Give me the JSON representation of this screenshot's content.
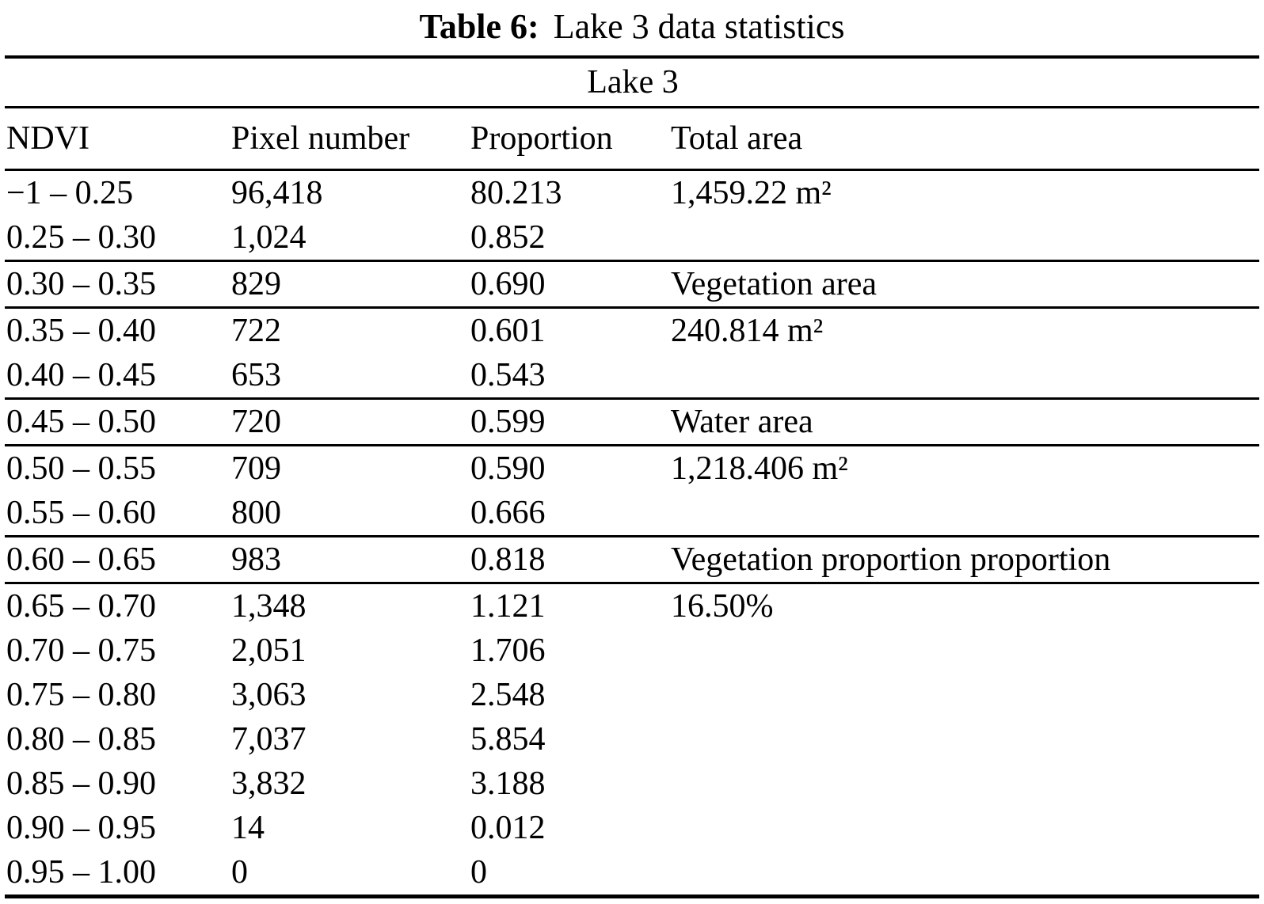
{
  "title": {
    "label": "Table 6:",
    "text": "Lake 3 data statistics"
  },
  "table": {
    "group_header": "Lake 3",
    "columns": [
      "NDVI",
      "Pixel number",
      "Proportion",
      "Total area"
    ],
    "rows": [
      {
        "ndvi": "−1 – 0.25",
        "pixels": "96,418",
        "proportion": "80.213",
        "area": "1,459.22 m²"
      },
      {
        "ndvi": "0.25 – 0.30",
        "pixels": "1,024",
        "proportion": "0.852",
        "area": ""
      },
      {
        "ndvi": "0.30 – 0.35",
        "pixels": "829",
        "proportion": "0.690",
        "area": "Vegetation area"
      },
      {
        "ndvi": "0.35 – 0.40",
        "pixels": "722",
        "proportion": "0.601",
        "area": "240.814 m²"
      },
      {
        "ndvi": "0.40 – 0.45",
        "pixels": "653",
        "proportion": "0.543",
        "area": ""
      },
      {
        "ndvi": "0.45 – 0.50",
        "pixels": "720",
        "proportion": "0.599",
        "area": "Water area"
      },
      {
        "ndvi": "0.50 – 0.55",
        "pixels": "709",
        "proportion": "0.590",
        "area": "1,218.406 m²"
      },
      {
        "ndvi": "0.55 – 0.60",
        "pixels": "800",
        "proportion": "0.666",
        "area": ""
      },
      {
        "ndvi": "0.60 – 0.65",
        "pixels": "983",
        "proportion": "0.818",
        "area": "Vegetation proportion proportion"
      },
      {
        "ndvi": "0.65 – 0.70",
        "pixels": "1,348",
        "proportion": "1.121",
        "area": "16.50%"
      },
      {
        "ndvi": "0.70 – 0.75",
        "pixels": "2,051",
        "proportion": "1.706",
        "area": ""
      },
      {
        "ndvi": "0.75 – 0.80",
        "pixels": "3,063",
        "proportion": "2.548",
        "area": ""
      },
      {
        "ndvi": "0.80 – 0.85",
        "pixels": "7,037",
        "proportion": "5.854",
        "area": ""
      },
      {
        "ndvi": "0.85 – 0.90",
        "pixels": "3,832",
        "proportion": "3.188",
        "area": ""
      },
      {
        "ndvi": "0.90 – 0.95",
        "pixels": "14",
        "proportion": "0.012",
        "area": ""
      },
      {
        "ndvi": "0.95 – 1.00",
        "pixels": "0",
        "proportion": "0",
        "area": ""
      }
    ],
    "text_color": "#000000",
    "background_color": "#ffffff"
  }
}
